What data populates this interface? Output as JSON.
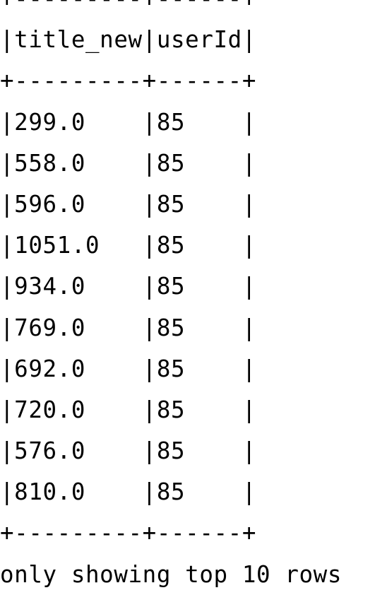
{
  "output": {
    "border_line": "+---------+------+",
    "header_line": "|title_new|userId|",
    "columns": [
      "title_new",
      "userId"
    ],
    "rows": [
      {
        "text": "|299.0    |85    |",
        "title_new": "299.0",
        "userId": "85"
      },
      {
        "text": "|558.0    |85    |",
        "title_new": "558.0",
        "userId": "85"
      },
      {
        "text": "|596.0    |85    |",
        "title_new": "596.0",
        "userId": "85"
      },
      {
        "text": "|1051.0   |85    |",
        "title_new": "1051.0",
        "userId": "85"
      },
      {
        "text": "|934.0    |85    |",
        "title_new": "934.0",
        "userId": "85"
      },
      {
        "text": "|769.0    |85    |",
        "title_new": "769.0",
        "userId": "85"
      },
      {
        "text": "|692.0    |85    |",
        "title_new": "692.0",
        "userId": "85"
      },
      {
        "text": "|720.0    |85    |",
        "title_new": "720.0",
        "userId": "85"
      },
      {
        "text": "|576.0    |85    |",
        "title_new": "576.0",
        "userId": "85"
      },
      {
        "text": "|810.0    |85    |",
        "title_new": "810.0",
        "userId": "85"
      }
    ],
    "footer": "only showing top 10 rows"
  }
}
